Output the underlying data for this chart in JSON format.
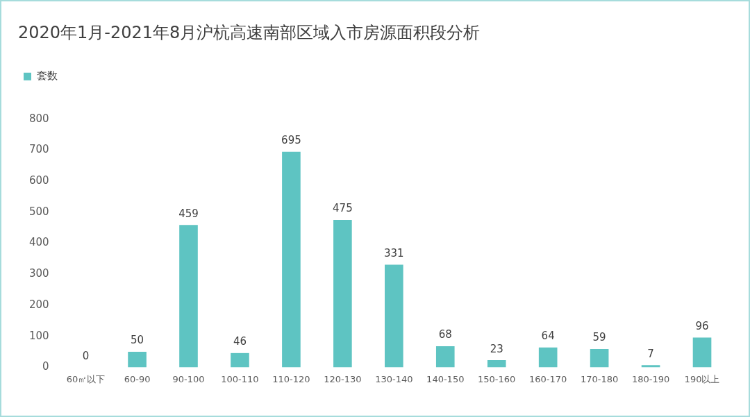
{
  "chart_data": {
    "type": "bar",
    "title": "2020年1月-2021年8月沪杭高速南部区域入市房源面积段分析",
    "categories": [
      "60㎡以下",
      "60-90",
      "90-100",
      "100-110",
      "110-120",
      "120-130",
      "130-140",
      "140-150",
      "150-160",
      "160-170",
      "170-180",
      "180-190",
      "190以上"
    ],
    "series": [
      {
        "name": "套数",
        "color": "#5ec4c2",
        "values": [
          0,
          50,
          459,
          46,
          695,
          475,
          331,
          68,
          23,
          64,
          59,
          7,
          96
        ]
      }
    ],
    "ylim": [
      0,
      800
    ],
    "yticks": [
      0,
      100,
      200,
      300,
      400,
      500,
      600,
      700,
      800
    ],
    "legend": "top left",
    "data_labels": true
  }
}
